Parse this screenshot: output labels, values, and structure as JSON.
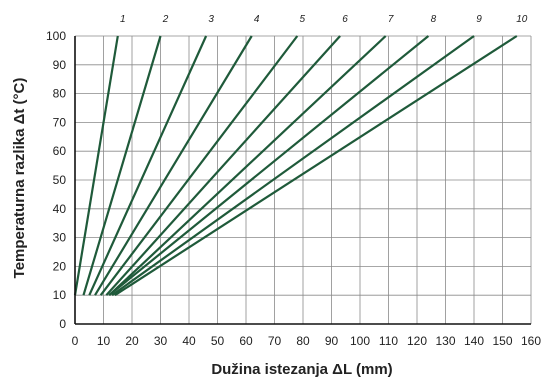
{
  "chart_data": {
    "type": "line",
    "title": "",
    "xlabel": "Dužina istezanja ΔL (mm)",
    "ylabel": "Temperaturna razlika Δt (°C)",
    "xlim": [
      0,
      160
    ],
    "ylim": [
      0,
      100
    ],
    "x_ticks": [
      0,
      10,
      20,
      30,
      40,
      50,
      60,
      70,
      80,
      90,
      100,
      110,
      120,
      130,
      140,
      150,
      160
    ],
    "y_ticks": [
      0,
      10,
      20,
      30,
      40,
      50,
      60,
      70,
      80,
      90,
      100
    ],
    "y_tick_labels": [
      "0",
      "10",
      "20",
      "30",
      "40",
      "50",
      "60",
      "70",
      "80",
      "90",
      "100"
    ],
    "x_tick_labels": [
      "0",
      "10",
      "20",
      "30",
      "40",
      "50",
      "60",
      "70",
      "80",
      "90",
      "100",
      "110",
      "120",
      "130",
      "140",
      "150",
      "160"
    ],
    "grid": true,
    "series": [
      {
        "name": "1",
        "points": [
          [
            0,
            10
          ],
          [
            15,
            100
          ]
        ]
      },
      {
        "name": "2",
        "points": [
          [
            3,
            10
          ],
          [
            30,
            100
          ]
        ]
      },
      {
        "name": "3",
        "points": [
          [
            5,
            10
          ],
          [
            46,
            100
          ]
        ]
      },
      {
        "name": "4",
        "points": [
          [
            7,
            10
          ],
          [
            62,
            100
          ]
        ]
      },
      {
        "name": "5",
        "points": [
          [
            9,
            10
          ],
          [
            78,
            100
          ]
        ]
      },
      {
        "name": "6",
        "points": [
          [
            11,
            10
          ],
          [
            93,
            100
          ]
        ]
      },
      {
        "name": "7",
        "points": [
          [
            12,
            10
          ],
          [
            109,
            100
          ]
        ]
      },
      {
        "name": "8",
        "points": [
          [
            12,
            10
          ],
          [
            124,
            100
          ]
        ]
      },
      {
        "name": "9",
        "points": [
          [
            13,
            10
          ],
          [
            140,
            100
          ]
        ]
      },
      {
        "name": "10",
        "points": [
          [
            14,
            10
          ],
          [
            155,
            100
          ]
        ]
      }
    ],
    "colors": {
      "line": "#1f5a3a",
      "grid": "#8a8a8a",
      "axis": "#111111"
    }
  }
}
